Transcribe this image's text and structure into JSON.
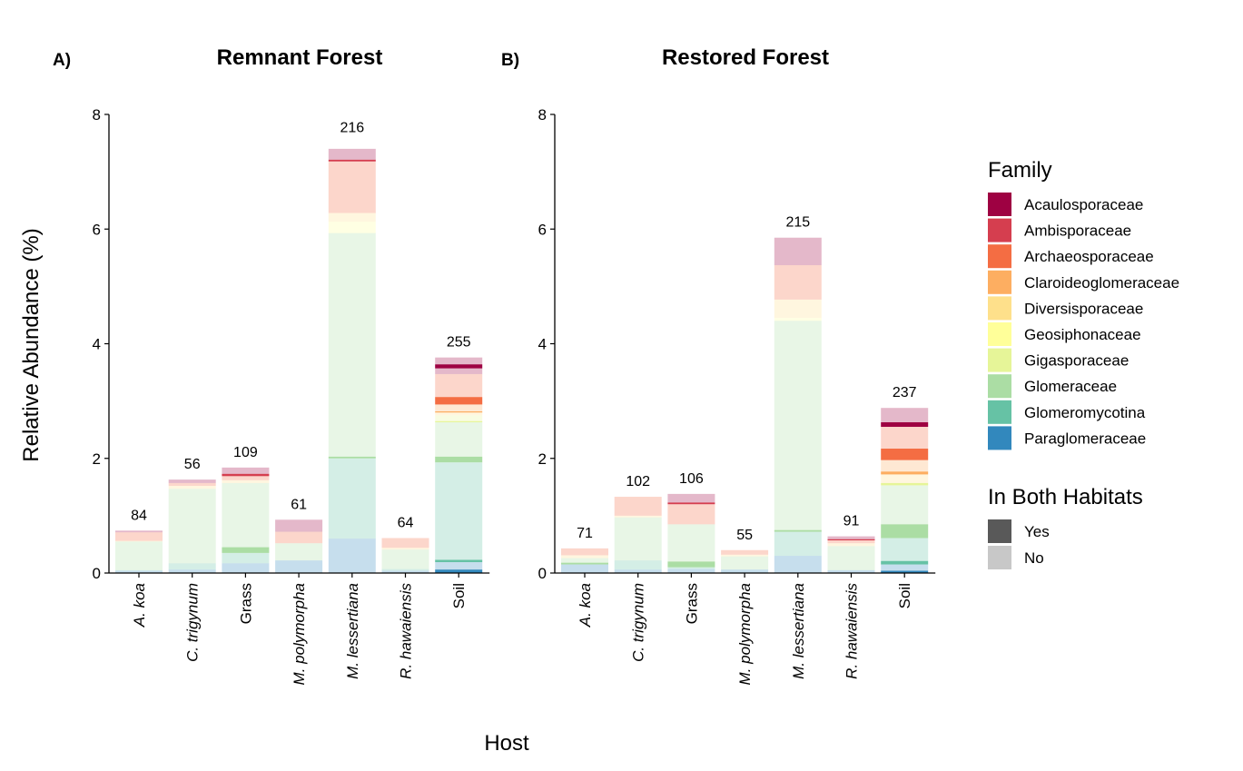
{
  "x_axis_title": "Host",
  "y_axis_title": "Relative Abundance (%)",
  "legend": {
    "family_title": "Family",
    "families": [
      {
        "name": "Acaulosporaceae",
        "color": "#9E0142"
      },
      {
        "name": "Ambisporaceae",
        "color": "#D53E4F"
      },
      {
        "name": "Archaeosporaceae",
        "color": "#F46D43"
      },
      {
        "name": "Claroideoglomeraceae",
        "color": "#FDAE61"
      },
      {
        "name": "Diversisporaceae",
        "color": "#FEE08B"
      },
      {
        "name": "Geosiphonaceae",
        "color": "#FFFF99"
      },
      {
        "name": "Gigasporaceae",
        "color": "#E6F598"
      },
      {
        "name": "Glomeraceae",
        "color": "#ABDDA4"
      },
      {
        "name": "Glomeromycotina",
        "color": "#66C2A5"
      },
      {
        "name": "Paraglomeraceae",
        "color": "#3288BD"
      }
    ],
    "habitat_title": "In Both Habitats",
    "habitat": [
      {
        "name": "Yes",
        "color": "#595959"
      },
      {
        "name": "No",
        "color": "#C8C8C8"
      }
    ]
  },
  "chart_data": [
    {
      "panel": "A)",
      "title": "Remnant Forest",
      "type": "bar",
      "stacked": true,
      "xlabel": "Host",
      "ylabel": "Relative Abundance (%)",
      "ylim": [
        0,
        8
      ],
      "yticks": [
        "0",
        "2",
        "4",
        "6",
        "8"
      ],
      "grid": false,
      "legend_position": "right",
      "categories": [
        {
          "label": "A. koa",
          "italic": true,
          "count": "84",
          "total": 0.74,
          "segments": [
            [
              "Paraglomeraceae",
              "No",
              0.04
            ],
            [
              "Glomeromycotina",
              "No",
              0.01
            ],
            [
              "Glomeraceae",
              "No",
              0.04
            ],
            [
              "Glomeraceae",
              "No",
              0.46
            ],
            [
              "Diversisporaceae",
              "No",
              0.01
            ],
            [
              "Archaeosporaceae",
              "No",
              0.15
            ],
            [
              "Acaulosporaceae",
              "No",
              0.03
            ]
          ]
        },
        {
          "label": "C. trigynum",
          "italic": true,
          "count": "56",
          "total": 1.63,
          "segments": [
            [
              "Paraglomeraceae",
              "No",
              0.06
            ],
            [
              "Glomeromycotina",
              "No",
              0.11
            ],
            [
              "Glomeraceae",
              "No",
              1.3
            ],
            [
              "Diversisporaceae",
              "No",
              0.05
            ],
            [
              "Archaeosporaceae",
              "No",
              0.05
            ],
            [
              "Acaulosporaceae",
              "No",
              0.06
            ]
          ]
        },
        {
          "label": "Grass",
          "italic": false,
          "count": "109",
          "total": 1.84,
          "segments": [
            [
              "Paraglomeraceae",
              "No",
              0.17
            ],
            [
              "Glomeromycotina",
              "No",
              0.18
            ],
            [
              "Glomeraceae",
              "Yes",
              0.1
            ],
            [
              "Glomeraceae",
              "No",
              1.12
            ],
            [
              "Diversisporaceae",
              "No",
              0.05
            ],
            [
              "Archaeosporaceae",
              "No",
              0.07
            ],
            [
              "Ambisporaceae",
              "Yes",
              0.04
            ],
            [
              "Acaulosporaceae",
              "No",
              0.11
            ]
          ]
        },
        {
          "label": "M. polymorpha",
          "italic": true,
          "count": "61",
          "total": 0.93,
          "segments": [
            [
              "Paraglomeraceae",
              "No",
              0.22
            ],
            [
              "Glomeraceae",
              "No",
              0.3
            ],
            [
              "Archaeosporaceae",
              "No",
              0.2
            ],
            [
              "Acaulosporaceae",
              "No",
              0.21
            ]
          ]
        },
        {
          "label": "M. lessertiana",
          "italic": true,
          "count": "216",
          "total": 7.5,
          "segments": [
            [
              "Paraglomeraceae",
              "No",
              0.6
            ],
            [
              "Glomeromycotina",
              "No",
              1.4
            ],
            [
              "Glomeraceae",
              "Yes",
              0.03
            ],
            [
              "Glomeraceae",
              "No",
              3.9
            ],
            [
              "Geosiphonaceae",
              "No",
              0.2
            ],
            [
              "Diversisporaceae",
              "No",
              0.15
            ],
            [
              "Archaeosporaceae",
              "No",
              0.9
            ],
            [
              "Ambisporaceae",
              "Yes",
              0.03
            ],
            [
              "Acaulosporaceae",
              "No",
              0.19
            ]
          ]
        },
        {
          "label": "R. hawaiensis",
          "italic": true,
          "count": "64",
          "total": 0.61,
          "segments": [
            [
              "Paraglomeraceae",
              "No",
              0.04
            ],
            [
              "Glomeromycotina",
              "No",
              0.03
            ],
            [
              "Glomeraceae",
              "No",
              0.34
            ],
            [
              "Diversisporaceae",
              "No",
              0.03
            ],
            [
              "Archaeosporaceae",
              "No",
              0.17
            ]
          ]
        },
        {
          "label": "Soil",
          "italic": false,
          "count": "255",
          "total": 3.76,
          "segments": [
            [
              "Paraglomeraceae",
              "Yes",
              0.06
            ],
            [
              "Paraglomeraceae",
              "No",
              0.13
            ],
            [
              "Glomeromycotina",
              "Yes",
              0.04
            ],
            [
              "Glomeromycotina",
              "No",
              1.7
            ],
            [
              "Glomeraceae",
              "Yes",
              0.1
            ],
            [
              "Glomeraceae",
              "No",
              0.6
            ],
            [
              "Gigasporaceae",
              "Yes",
              0.02
            ],
            [
              "Gigasporaceae",
              "No",
              0.1
            ],
            [
              "Diversisporaceae",
              "No",
              0.05
            ],
            [
              "Claroideoglomeraceae",
              "Yes",
              0.02
            ],
            [
              "Claroideoglomeraceae",
              "No",
              0.12
            ],
            [
              "Archaeosporaceae",
              "Yes",
              0.13
            ],
            [
              "Archaeosporaceae",
              "No",
              0.4
            ],
            [
              "Acaulosporaceae",
              "No",
              0.1
            ],
            [
              "Acaulosporaceae",
              "Yes",
              0.07
            ],
            [
              "Acaulosporaceae",
              "No",
              0.12
            ]
          ]
        }
      ]
    },
    {
      "panel": "B)",
      "title": "Restored Forest",
      "type": "bar",
      "stacked": true,
      "xlabel": "Host",
      "ylabel": "Relative Abundance (%)",
      "ylim": [
        0,
        8
      ],
      "yticks": [
        "0",
        "2",
        "4",
        "6",
        "8"
      ],
      "grid": false,
      "legend_position": "right",
      "categories": [
        {
          "label": "A. koa",
          "italic": true,
          "count": "71",
          "total": 0.43,
          "segments": [
            [
              "Paraglomeraceae",
              "No",
              0.15
            ],
            [
              "Glomeraceae",
              "Yes",
              0.03
            ],
            [
              "Glomeraceae",
              "No",
              0.08
            ],
            [
              "Diversisporaceae",
              "No",
              0.05
            ],
            [
              "Archaeosporaceae",
              "No",
              0.12
            ]
          ]
        },
        {
          "label": "C. trigynum",
          "italic": true,
          "count": "102",
          "total": 1.33,
          "segments": [
            [
              "Paraglomeraceae",
              "No",
              0.06
            ],
            [
              "Glomeromycotina",
              "No",
              0.16
            ],
            [
              "Glomeraceae",
              "No",
              0.75
            ],
            [
              "Diversisporaceae",
              "No",
              0.03
            ],
            [
              "Archaeosporaceae",
              "No",
              0.33
            ]
          ]
        },
        {
          "label": "Grass",
          "italic": false,
          "count": "106",
          "total": 1.38,
          "segments": [
            [
              "Paraglomeraceae",
              "No",
              0.07
            ],
            [
              "Glomeromycotina",
              "No",
              0.03
            ],
            [
              "Glomeraceae",
              "Yes",
              0.1
            ],
            [
              "Glomeraceae",
              "No",
              0.65
            ],
            [
              "Archaeosporaceae",
              "No",
              0.35
            ],
            [
              "Ambisporaceae",
              "Yes",
              0.03
            ],
            [
              "Acaulosporaceae",
              "No",
              0.15
            ]
          ]
        },
        {
          "label": "M. polymorpha",
          "italic": true,
          "count": "55",
          "total": 0.4,
          "segments": [
            [
              "Paraglomeraceae",
              "No",
              0.06
            ],
            [
              "Glomeraceae",
              "No",
              0.23
            ],
            [
              "Diversisporaceae",
              "No",
              0.03
            ],
            [
              "Archaeosporaceae",
              "No",
              0.08
            ]
          ]
        },
        {
          "label": "M. lessertiana",
          "italic": true,
          "count": "215",
          "total": 5.85,
          "segments": [
            [
              "Paraglomeraceae",
              "No",
              0.3
            ],
            [
              "Glomeromycotina",
              "No",
              0.42
            ],
            [
              "Glomeraceae",
              "Yes",
              0.03
            ],
            [
              "Glomeraceae",
              "No",
              3.65
            ],
            [
              "Geosiphonaceae",
              "No",
              0.05
            ],
            [
              "Diversisporaceae",
              "No",
              0.32
            ],
            [
              "Archaeosporaceae",
              "No",
              0.6
            ],
            [
              "Acaulosporaceae",
              "No",
              0.48
            ]
          ]
        },
        {
          "label": "R. hawaiensis",
          "italic": true,
          "count": "91",
          "total": 0.64,
          "segments": [
            [
              "Paraglomeraceae",
              "No",
              0.05
            ],
            [
              "Glomeraceae",
              "No",
              0.42
            ],
            [
              "Diversisporaceae",
              "No",
              0.05
            ],
            [
              "Archaeosporaceae",
              "No",
              0.05
            ],
            [
              "Ambisporaceae",
              "Yes",
              0.02
            ],
            [
              "Acaulosporaceae",
              "No",
              0.05
            ]
          ]
        },
        {
          "label": "Soil",
          "italic": false,
          "count": "237",
          "total": 2.88,
          "segments": [
            [
              "Paraglomeraceae",
              "Yes",
              0.04
            ],
            [
              "Paraglomeraceae",
              "No",
              0.11
            ],
            [
              "Glomeromycotina",
              "Yes",
              0.06
            ],
            [
              "Glomeromycotina",
              "No",
              0.4
            ],
            [
              "Glomeraceae",
              "Yes",
              0.24
            ],
            [
              "Glomeraceae",
              "No",
              0.68
            ],
            [
              "Gigasporaceae",
              "Yes",
              0.04
            ],
            [
              "Diversisporaceae",
              "No",
              0.15
            ],
            [
              "Claroideoglomeraceae",
              "Yes",
              0.05
            ],
            [
              "Claroideoglomeraceae",
              "No",
              0.2
            ],
            [
              "Archaeosporaceae",
              "Yes",
              0.2
            ],
            [
              "Archaeosporaceae",
              "No",
              0.38
            ],
            [
              "Acaulosporaceae",
              "Yes",
              0.08
            ],
            [
              "Acaulosporaceae",
              "No",
              0.25
            ]
          ]
        }
      ]
    }
  ]
}
